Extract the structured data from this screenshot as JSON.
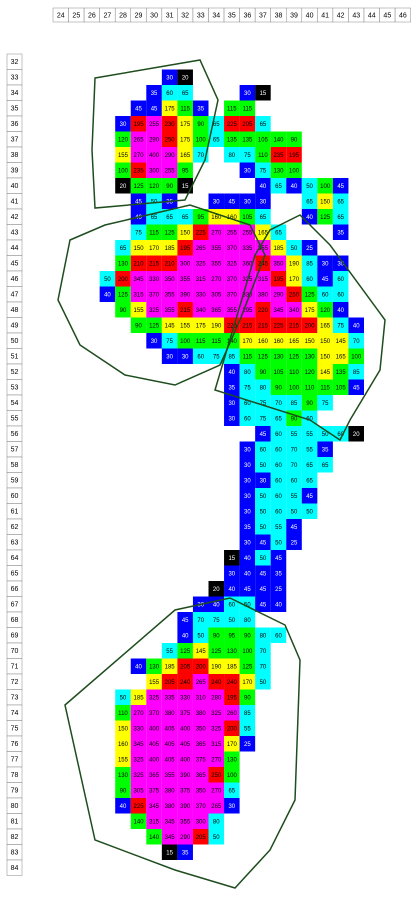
{
  "columns": [
    24,
    25,
    26,
    27,
    28,
    29,
    30,
    31,
    32,
    33,
    34,
    35,
    36,
    37,
    38,
    39,
    40,
    41,
    42,
    43,
    44,
    45,
    46
  ],
  "rows": [
    32,
    33,
    34,
    35,
    36,
    37,
    38,
    39,
    40,
    41,
    42,
    43,
    44,
    45,
    46,
    47,
    48,
    49,
    50,
    51,
    52,
    53,
    54,
    55,
    56,
    57,
    58,
    59,
    60,
    61,
    62,
    63,
    64,
    65,
    66,
    67,
    68,
    69,
    70,
    71,
    72,
    73,
    74,
    75,
    76,
    77,
    78,
    79,
    80,
    81,
    82,
    83,
    84
  ],
  "color_scale": [
    {
      "max": 20,
      "color": "#000000"
    },
    {
      "max": 45,
      "color": "#0000ff"
    },
    {
      "max": 85,
      "color": "#00ffff"
    },
    {
      "max": 140,
      "color": "#00ff00"
    },
    {
      "max": 190,
      "color": "#ffff00"
    },
    {
      "max": 250,
      "color": "#ff0000"
    },
    {
      "max": 1000,
      "color": "#ff00ff"
    }
  ],
  "cells": [
    {
      "row": 33,
      "start": 31,
      "values": [
        30,
        20
      ]
    },
    {
      "row": 34,
      "start": 30,
      "values": [
        35,
        60,
        65,
        null,
        null,
        null,
        30,
        15
      ]
    },
    {
      "row": 35,
      "start": 29,
      "values": [
        45,
        45,
        175,
        115,
        35,
        null,
        115,
        115
      ]
    },
    {
      "row": 36,
      "start": 28,
      "values": [
        30,
        195,
        255,
        230,
        175,
        90,
        65,
        225,
        205,
        65
      ]
    },
    {
      "row": 37,
      "start": 28,
      "values": [
        120,
        265,
        290,
        250,
        175,
        100,
        65,
        135,
        135,
        105,
        140,
        90
      ]
    },
    {
      "row": 38,
      "start": 28,
      "values": [
        155,
        270,
        400,
        290,
        165,
        70,
        null,
        80,
        75,
        110,
        235,
        195
      ]
    },
    {
      "row": 39,
      "start": 28,
      "values": [
        100,
        235,
        300,
        255,
        95,
        null,
        null,
        null,
        30,
        75,
        130,
        100
      ]
    },
    {
      "row": 40,
      "start": 28,
      "values": [
        20,
        125,
        120,
        90,
        15,
        null,
        null,
        null,
        null,
        40,
        65,
        40,
        50,
        100,
        45
      ]
    },
    {
      "row": 41,
      "start": 29,
      "values": [
        45,
        50,
        35,
        null,
        null,
        30,
        45,
        30,
        30,
        null,
        null,
        65,
        150,
        65
      ]
    },
    {
      "row": 42,
      "start": 29,
      "values": [
        40,
        65,
        65,
        65,
        95,
        160,
        160,
        105,
        65,
        null,
        null,
        40,
        125,
        65
      ]
    },
    {
      "row": 43,
      "start": 29,
      "values": [
        75,
        115,
        125,
        150,
        225,
        270,
        255,
        255,
        165,
        65,
        null,
        null,
        null,
        35
      ]
    },
    {
      "row": 44,
      "start": 28,
      "values": [
        65,
        150,
        170,
        185,
        195,
        265,
        355,
        370,
        335,
        355,
        185,
        50,
        25
      ]
    },
    {
      "row": 45,
      "start": 28,
      "values": [
        130,
        210,
        215,
        210,
        300,
        325,
        355,
        325,
        360,
        245,
        350,
        190,
        85,
        30,
        30
      ]
    },
    {
      "row": 46,
      "start": 27,
      "values": [
        50,
        200,
        345,
        330,
        350,
        355,
        315,
        270,
        370,
        325,
        315,
        195,
        170,
        60,
        45,
        60
      ]
    },
    {
      "row": 47,
      "start": 27,
      "values": [
        40,
        125,
        315,
        370,
        355,
        390,
        330,
        305,
        370,
        330,
        380,
        290,
        250,
        125,
        60,
        60
      ]
    },
    {
      "row": 48,
      "start": 28,
      "values": [
        90,
        155,
        325,
        355,
        215,
        340,
        365,
        355,
        295,
        220,
        345,
        340,
        175,
        120,
        40
      ]
    },
    {
      "row": 49,
      "start": 29,
      "values": [
        90,
        125,
        145,
        155,
        175,
        190,
        225,
        215,
        215,
        225,
        215,
        200,
        165,
        75,
        40
      ]
    },
    {
      "row": 50,
      "start": 30,
      "values": [
        30,
        75,
        100,
        115,
        115,
        140,
        170,
        160,
        160,
        165,
        150,
        150,
        145,
        70
      ]
    },
    {
      "row": 51,
      "start": 31,
      "values": [
        30,
        30,
        60,
        75,
        85,
        115,
        125,
        130,
        125,
        130,
        150,
        165,
        100
      ]
    },
    {
      "row": 52,
      "start": 35,
      "values": [
        40,
        80,
        90,
        105,
        110,
        120,
        145,
        135,
        85
      ]
    },
    {
      "row": 53,
      "start": 35,
      "values": [
        35,
        75,
        80,
        90,
        100,
        110,
        115,
        105,
        45
      ]
    },
    {
      "row": 54,
      "start": 35,
      "values": [
        30,
        60,
        75,
        70,
        85,
        90,
        75
      ]
    },
    {
      "row": 55,
      "start": 35,
      "values": [
        30,
        60,
        75,
        65,
        90,
        60
      ]
    },
    {
      "row": 56,
      "start": 37,
      "values": [
        45,
        60,
        55,
        55,
        50,
        60,
        20
      ]
    },
    {
      "row": 57,
      "start": 36,
      "values": [
        30,
        60,
        60,
        70,
        55,
        35
      ]
    },
    {
      "row": 58,
      "start": 36,
      "values": [
        30,
        50,
        60,
        70,
        65,
        65
      ]
    },
    {
      "row": 59,
      "start": 36,
      "values": [
        30,
        30,
        60,
        60,
        65
      ]
    },
    {
      "row": 60,
      "start": 36,
      "values": [
        30,
        50,
        60,
        55,
        45
      ]
    },
    {
      "row": 61,
      "start": 36,
      "values": [
        30,
        50,
        60,
        50,
        50
      ]
    },
    {
      "row": 62,
      "start": 36,
      "values": [
        35,
        50,
        55,
        45
      ]
    },
    {
      "row": 63,
      "start": 36,
      "values": [
        30,
        45,
        50,
        25
      ]
    },
    {
      "row": 64,
      "start": 35,
      "values": [
        15,
        40,
        50,
        45
      ]
    },
    {
      "row": 65,
      "start": 35,
      "values": [
        30,
        40,
        45,
        35
      ]
    },
    {
      "row": 66,
      "start": 34,
      "values": [
        20,
        40,
        45,
        45,
        25
      ]
    },
    {
      "row": 67,
      "start": 33,
      "values": [
        30,
        40,
        60,
        50,
        45,
        40
      ]
    },
    {
      "row": 68,
      "start": 32,
      "values": [
        45,
        70,
        75,
        50,
        80
      ]
    },
    {
      "row": 69,
      "start": 32,
      "values": [
        40,
        50,
        90,
        95,
        90,
        80,
        60
      ]
    },
    {
      "row": 70,
      "start": 31,
      "values": [
        55,
        125,
        145,
        125,
        130,
        100,
        70
      ]
    },
    {
      "row": 71,
      "start": 29,
      "values": [
        40,
        130,
        185,
        205,
        200,
        190,
        185,
        125,
        70
      ]
    },
    {
      "row": 72,
      "start": 30,
      "values": [
        155,
        205,
        240,
        265,
        240,
        240,
        170,
        50
      ]
    },
    {
      "row": 73,
      "start": 28,
      "values": [
        50,
        185,
        325,
        335,
        330,
        310,
        280,
        195,
        90
      ]
    },
    {
      "row": 74,
      "start": 28,
      "values": [
        110,
        270,
        370,
        380,
        375,
        380,
        325,
        260,
        85
      ]
    },
    {
      "row": 75,
      "start": 28,
      "values": [
        150,
        330,
        400,
        405,
        400,
        350,
        325,
        200,
        55
      ]
    },
    {
      "row": 76,
      "start": 28,
      "values": [
        160,
        345,
        405,
        405,
        405,
        365,
        315,
        170,
        25
      ]
    },
    {
      "row": 77,
      "start": 28,
      "values": [
        155,
        325,
        400,
        405,
        400,
        375,
        270,
        130
      ]
    },
    {
      "row": 78,
      "start": 28,
      "values": [
        130,
        325,
        365,
        355,
        390,
        365,
        250,
        100
      ]
    },
    {
      "row": 79,
      "start": 28,
      "values": [
        90,
        305,
        375,
        380,
        375,
        350,
        270,
        65
      ]
    },
    {
      "row": 80,
      "start": 28,
      "values": [
        40,
        225,
        345,
        380,
        390,
        370,
        265,
        30
      ]
    },
    {
      "row": 81,
      "start": 29,
      "values": [
        140,
        315,
        345,
        355,
        300,
        80
      ]
    },
    {
      "row": 82,
      "start": 30,
      "values": [
        140,
        345,
        290,
        205,
        50
      ]
    },
    {
      "row": 83,
      "start": 31,
      "values": [
        15,
        35
      ]
    }
  ]
}
